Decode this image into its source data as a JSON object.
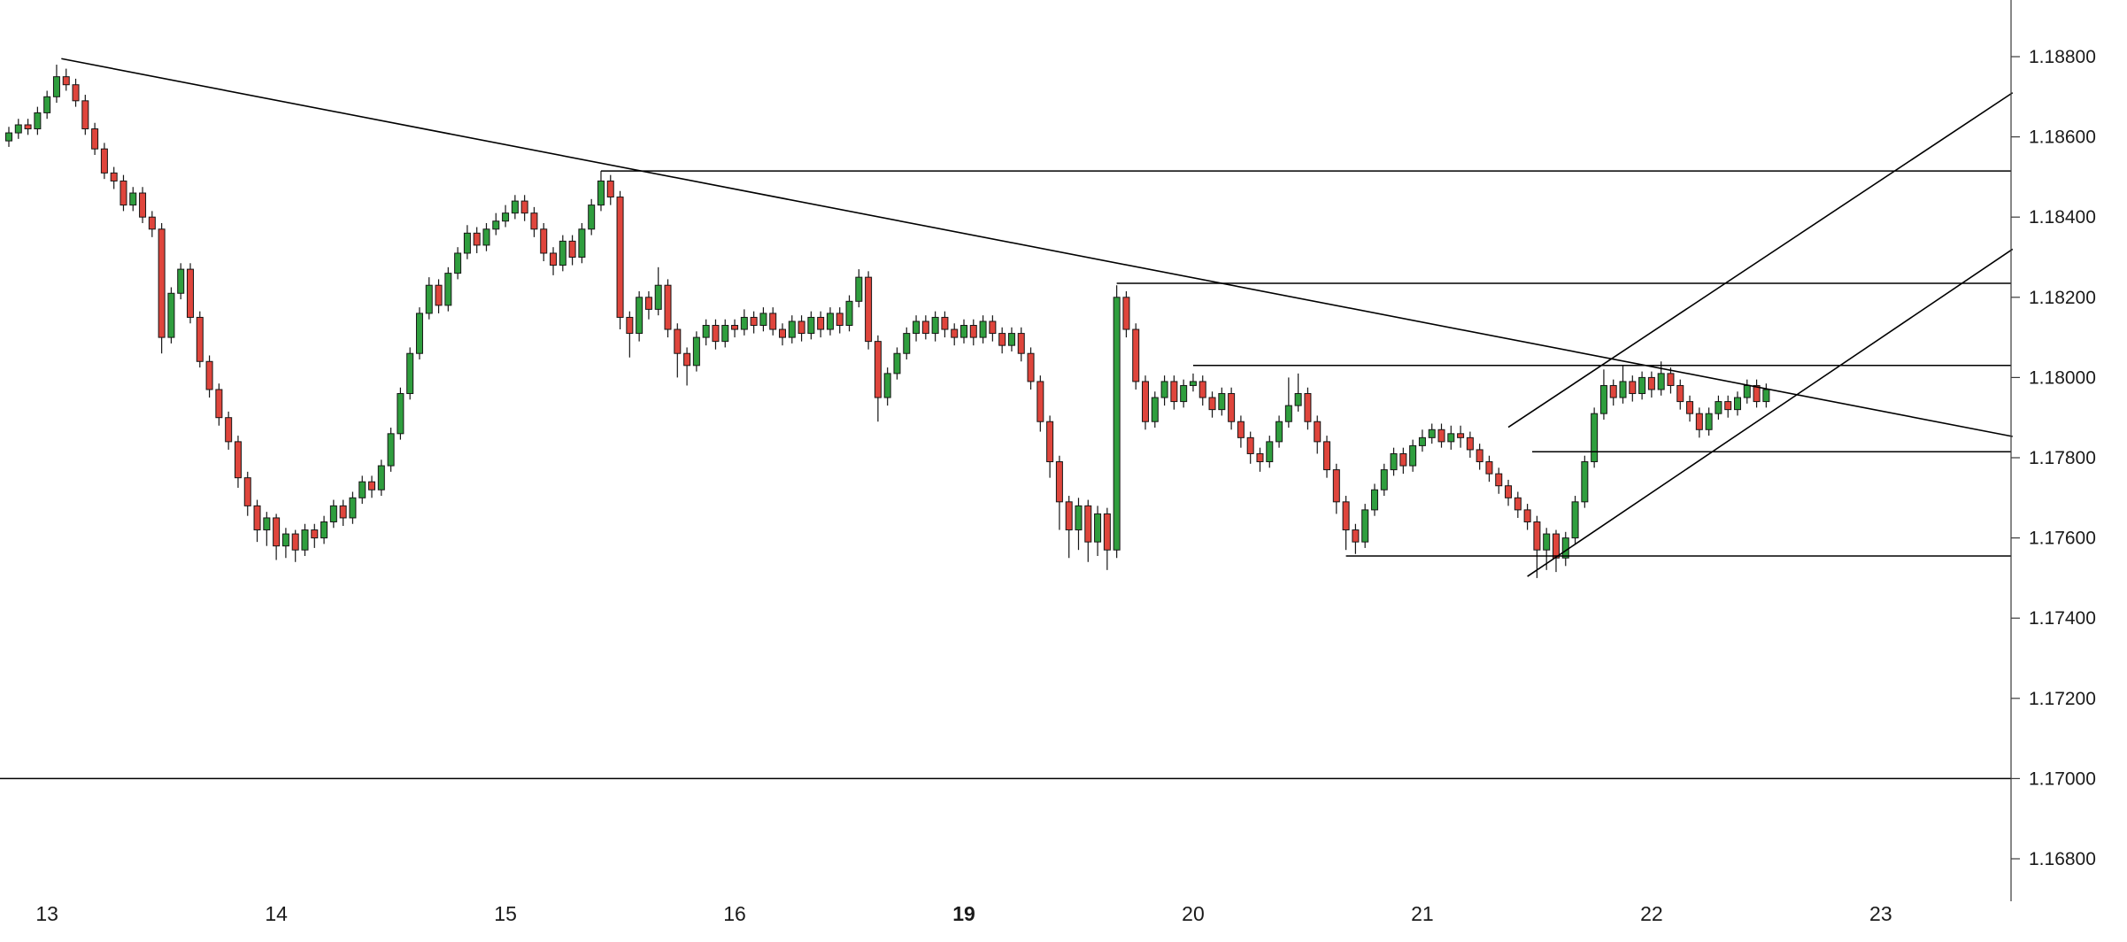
{
  "chart_data": {
    "type": "candlestick",
    "y_axis": {
      "min": 1.168,
      "max": 1.188,
      "step": 0.002,
      "ticks": [
        "1.18800",
        "1.18600",
        "1.18400",
        "1.18200",
        "1.18000",
        "1.17800",
        "1.17600",
        "1.17400",
        "1.17200",
        "1.17000",
        "1.16800"
      ]
    },
    "x_axis": {
      "ticks": [
        {
          "label": "13",
          "candle_index": 4,
          "bold": false
        },
        {
          "label": "14",
          "candle_index": 28,
          "bold": false
        },
        {
          "label": "15",
          "candle_index": 52,
          "bold": false
        },
        {
          "label": "16",
          "candle_index": 76,
          "bold": false
        },
        {
          "label": "19",
          "candle_index": 100,
          "bold": true
        },
        {
          "label": "20",
          "candle_index": 124,
          "bold": false
        },
        {
          "label": "21",
          "candle_index": 148,
          "bold": false
        },
        {
          "label": "22",
          "candle_index": 172,
          "bold": false
        },
        {
          "label": "23",
          "candle_index": 196,
          "bold": false
        }
      ]
    },
    "candles": [
      [
        1.1859,
        1.18625,
        1.18575,
        1.1861
      ],
      [
        1.1861,
        1.18645,
        1.18595,
        1.1863
      ],
      [
        1.1863,
        1.18645,
        1.18605,
        1.1862
      ],
      [
        1.1862,
        1.18675,
        1.18605,
        1.1866
      ],
      [
        1.1866,
        1.18715,
        1.18645,
        1.187
      ],
      [
        1.187,
        1.1878,
        1.18685,
        1.1875
      ],
      [
        1.1875,
        1.1877,
        1.18715,
        1.1873
      ],
      [
        1.1873,
        1.18745,
        1.18675,
        1.1869
      ],
      [
        1.1869,
        1.18705,
        1.18605,
        1.1862
      ],
      [
        1.1862,
        1.18635,
        1.18555,
        1.1857
      ],
      [
        1.1857,
        1.18585,
        1.18495,
        1.1851
      ],
      [
        1.1851,
        1.18525,
        1.1847,
        1.1849
      ],
      [
        1.1849,
        1.18505,
        1.18415,
        1.1843
      ],
      [
        1.1843,
        1.18475,
        1.18415,
        1.1846
      ],
      [
        1.1846,
        1.18475,
        1.18385,
        1.184
      ],
      [
        1.184,
        1.18415,
        1.1835,
        1.1837
      ],
      [
        1.1837,
        1.18385,
        1.1806,
        1.181
      ],
      [
        1.181,
        1.18225,
        1.18085,
        1.1821
      ],
      [
        1.1821,
        1.18285,
        1.18195,
        1.1827
      ],
      [
        1.1827,
        1.18285,
        1.18135,
        1.1815
      ],
      [
        1.1815,
        1.18165,
        1.18025,
        1.1804
      ],
      [
        1.1804,
        1.18055,
        1.1795,
        1.1797
      ],
      [
        1.1797,
        1.17985,
        1.1788,
        1.179
      ],
      [
        1.179,
        1.17915,
        1.1782,
        1.1784
      ],
      [
        1.1784,
        1.17855,
        1.17725,
        1.1775
      ],
      [
        1.1775,
        1.17765,
        1.17655,
        1.1768
      ],
      [
        1.1768,
        1.17695,
        1.1759,
        1.1762
      ],
      [
        1.1762,
        1.17665,
        1.1758,
        1.1765
      ],
      [
        1.1765,
        1.1766,
        1.17545,
        1.1758
      ],
      [
        1.1758,
        1.17625,
        1.1755,
        1.1761
      ],
      [
        1.1761,
        1.1762,
        1.1754,
        1.1757
      ],
      [
        1.1757,
        1.17635,
        1.17555,
        1.1762
      ],
      [
        1.1762,
        1.17635,
        1.17575,
        1.176
      ],
      [
        1.176,
        1.17655,
        1.17585,
        1.1764
      ],
      [
        1.1764,
        1.17695,
        1.17625,
        1.1768
      ],
      [
        1.1768,
        1.17695,
        1.1763,
        1.1765
      ],
      [
        1.1765,
        1.17715,
        1.17635,
        1.177
      ],
      [
        1.177,
        1.17755,
        1.17685,
        1.1774
      ],
      [
        1.1774,
        1.17755,
        1.177,
        1.1772
      ],
      [
        1.1772,
        1.17795,
        1.17705,
        1.1778
      ],
      [
        1.1778,
        1.17875,
        1.17765,
        1.1786
      ],
      [
        1.1786,
        1.17975,
        1.17845,
        1.1796
      ],
      [
        1.1796,
        1.18075,
        1.17945,
        1.1806
      ],
      [
        1.1806,
        1.18175,
        1.18045,
        1.1816
      ],
      [
        1.1816,
        1.1825,
        1.18145,
        1.1823
      ],
      [
        1.1823,
        1.18245,
        1.1816,
        1.1818
      ],
      [
        1.1818,
        1.18275,
        1.18165,
        1.1826
      ],
      [
        1.1826,
        1.18325,
        1.18245,
        1.1831
      ],
      [
        1.1831,
        1.1838,
        1.18295,
        1.1836
      ],
      [
        1.1836,
        1.18375,
        1.1831,
        1.1833
      ],
      [
        1.1833,
        1.18385,
        1.18315,
        1.1837
      ],
      [
        1.1837,
        1.1841,
        1.18355,
        1.1839
      ],
      [
        1.1839,
        1.1843,
        1.18375,
        1.1841
      ],
      [
        1.1841,
        1.18455,
        1.18395,
        1.1844
      ],
      [
        1.1844,
        1.18455,
        1.1839,
        1.1841
      ],
      [
        1.1841,
        1.18425,
        1.1835,
        1.1837
      ],
      [
        1.1837,
        1.18385,
        1.1829,
        1.1831
      ],
      [
        1.1831,
        1.18325,
        1.18255,
        1.1828
      ],
      [
        1.1828,
        1.18355,
        1.18265,
        1.1834
      ],
      [
        1.1834,
        1.18355,
        1.1828,
        1.183
      ],
      [
        1.183,
        1.18385,
        1.18285,
        1.1837
      ],
      [
        1.1837,
        1.18445,
        1.18355,
        1.1843
      ],
      [
        1.1843,
        1.18515,
        1.18415,
        1.1849
      ],
      [
        1.1849,
        1.18505,
        1.1843,
        1.1845
      ],
      [
        1.1845,
        1.18465,
        1.1812,
        1.1815
      ],
      [
        1.1815,
        1.18165,
        1.1805,
        1.1811
      ],
      [
        1.1811,
        1.18215,
        1.1809,
        1.182
      ],
      [
        1.182,
        1.18215,
        1.18145,
        1.1817
      ],
      [
        1.1817,
        1.18275,
        1.18155,
        1.1823
      ],
      [
        1.1823,
        1.18245,
        1.181,
        1.1812
      ],
      [
        1.1812,
        1.18135,
        1.18,
        1.1806
      ],
      [
        1.1806,
        1.18075,
        1.1798,
        1.1803
      ],
      [
        1.1803,
        1.18115,
        1.18015,
        1.181
      ],
      [
        1.181,
        1.18145,
        1.1808,
        1.1813
      ],
      [
        1.1813,
        1.18145,
        1.1807,
        1.1809
      ],
      [
        1.1809,
        1.18145,
        1.18075,
        1.1813
      ],
      [
        1.1813,
        1.18145,
        1.181,
        1.1812
      ],
      [
        1.1812,
        1.1817,
        1.18105,
        1.1815
      ],
      [
        1.1815,
        1.18165,
        1.1811,
        1.1813
      ],
      [
        1.1813,
        1.18175,
        1.18115,
        1.1816
      ],
      [
        1.1816,
        1.18175,
        1.18105,
        1.1812
      ],
      [
        1.1812,
        1.18135,
        1.1808,
        1.181
      ],
      [
        1.181,
        1.18155,
        1.18085,
        1.1814
      ],
      [
        1.1814,
        1.18155,
        1.1809,
        1.1811
      ],
      [
        1.1811,
        1.18165,
        1.18095,
        1.1815
      ],
      [
        1.1815,
        1.18165,
        1.181,
        1.1812
      ],
      [
        1.1812,
        1.18175,
        1.18105,
        1.1816
      ],
      [
        1.1816,
        1.18175,
        1.1811,
        1.1813
      ],
      [
        1.1813,
        1.18205,
        1.18115,
        1.1819
      ],
      [
        1.1819,
        1.1827,
        1.18175,
        1.1825
      ],
      [
        1.1825,
        1.18265,
        1.1807,
        1.1809
      ],
      [
        1.1809,
        1.18105,
        1.1789,
        1.1795
      ],
      [
        1.1795,
        1.18025,
        1.1793,
        1.1801
      ],
      [
        1.1801,
        1.18075,
        1.17995,
        1.1806
      ],
      [
        1.1806,
        1.18125,
        1.18045,
        1.1811
      ],
      [
        1.1811,
        1.18155,
        1.1809,
        1.1814
      ],
      [
        1.1814,
        1.18155,
        1.18095,
        1.1811
      ],
      [
        1.1811,
        1.18165,
        1.1809,
        1.1815
      ],
      [
        1.1815,
        1.18165,
        1.181,
        1.1812
      ],
      [
        1.1812,
        1.18135,
        1.1808,
        1.181
      ],
      [
        1.181,
        1.18145,
        1.18085,
        1.1813
      ],
      [
        1.1813,
        1.18145,
        1.1808,
        1.181
      ],
      [
        1.181,
        1.18155,
        1.18085,
        1.1814
      ],
      [
        1.1814,
        1.18155,
        1.1809,
        1.1811
      ],
      [
        1.1811,
        1.18125,
        1.1806,
        1.1808
      ],
      [
        1.1808,
        1.18125,
        1.18065,
        1.1811
      ],
      [
        1.1811,
        1.18125,
        1.1804,
        1.1806
      ],
      [
        1.1806,
        1.18075,
        1.1797,
        1.1799
      ],
      [
        1.1799,
        1.18005,
        1.17865,
        1.1789
      ],
      [
        1.1789,
        1.17905,
        1.1775,
        1.1779
      ],
      [
        1.1779,
        1.17805,
        1.1762,
        1.1769
      ],
      [
        1.1769,
        1.17705,
        1.1755,
        1.1762
      ],
      [
        1.1762,
        1.177,
        1.1757,
        1.1768
      ],
      [
        1.1768,
        1.17695,
        1.1754,
        1.1759
      ],
      [
        1.1759,
        1.1768,
        1.17555,
        1.1766
      ],
      [
        1.1766,
        1.17675,
        1.1752,
        1.1757
      ],
      [
        1.1757,
        1.1823,
        1.1755,
        1.182
      ],
      [
        1.182,
        1.18215,
        1.181,
        1.1812
      ],
      [
        1.1812,
        1.18135,
        1.1797,
        1.1799
      ],
      [
        1.1799,
        1.18005,
        1.1787,
        1.1789
      ],
      [
        1.1789,
        1.17965,
        1.17875,
        1.1795
      ],
      [
        1.1795,
        1.18005,
        1.1793,
        1.1799
      ],
      [
        1.1799,
        1.18005,
        1.1792,
        1.1794
      ],
      [
        1.1794,
        1.17995,
        1.17925,
        1.1798
      ],
      [
        1.1798,
        1.1801,
        1.17965,
        1.1799
      ],
      [
        1.1799,
        1.18005,
        1.1793,
        1.1795
      ],
      [
        1.1795,
        1.17965,
        1.179,
        1.1792
      ],
      [
        1.1792,
        1.17975,
        1.17905,
        1.1796
      ],
      [
        1.1796,
        1.17975,
        1.1787,
        1.1789
      ],
      [
        1.1789,
        1.17905,
        1.17825,
        1.1785
      ],
      [
        1.1785,
        1.17865,
        1.17785,
        1.1781
      ],
      [
        1.1781,
        1.17825,
        1.17765,
        1.1779
      ],
      [
        1.1779,
        1.17855,
        1.17775,
        1.1784
      ],
      [
        1.1784,
        1.17905,
        1.17825,
        1.1789
      ],
      [
        1.1789,
        1.18,
        1.17875,
        1.1793
      ],
      [
        1.1793,
        1.1801,
        1.17915,
        1.1796
      ],
      [
        1.1796,
        1.17975,
        1.1787,
        1.1789
      ],
      [
        1.1789,
        1.17905,
        1.1781,
        1.1784
      ],
      [
        1.1784,
        1.17855,
        1.1775,
        1.1777
      ],
      [
        1.1777,
        1.17785,
        1.1766,
        1.1769
      ],
      [
        1.1769,
        1.17705,
        1.1757,
        1.1762
      ],
      [
        1.1762,
        1.17635,
        1.1756,
        1.1759
      ],
      [
        1.1759,
        1.17685,
        1.17575,
        1.1767
      ],
      [
        1.1767,
        1.17735,
        1.17655,
        1.1772
      ],
      [
        1.1772,
        1.17785,
        1.17705,
        1.1777
      ],
      [
        1.1777,
        1.17825,
        1.17755,
        1.1781
      ],
      [
        1.1781,
        1.17825,
        1.1776,
        1.1778
      ],
      [
        1.1778,
        1.17845,
        1.17765,
        1.1783
      ],
      [
        1.1783,
        1.1787,
        1.17815,
        1.1785
      ],
      [
        1.1785,
        1.17885,
        1.17835,
        1.1787
      ],
      [
        1.1787,
        1.17885,
        1.17825,
        1.1784
      ],
      [
        1.1784,
        1.1788,
        1.1782,
        1.1786
      ],
      [
        1.1786,
        1.1788,
        1.17825,
        1.1785
      ],
      [
        1.1785,
        1.17865,
        1.178,
        1.1782
      ],
      [
        1.1782,
        1.17835,
        1.1777,
        1.1779
      ],
      [
        1.1779,
        1.17805,
        1.1774,
        1.1776
      ],
      [
        1.1776,
        1.17775,
        1.1771,
        1.1773
      ],
      [
        1.1773,
        1.17745,
        1.1768,
        1.177
      ],
      [
        1.177,
        1.17715,
        1.1765,
        1.1767
      ],
      [
        1.1767,
        1.17685,
        1.1762,
        1.1764
      ],
      [
        1.1764,
        1.17655,
        1.175,
        1.1757
      ],
      [
        1.1757,
        1.17625,
        1.1752,
        1.1761
      ],
      [
        1.1761,
        1.1762,
        1.17515,
        1.1755
      ],
      [
        1.1755,
        1.17615,
        1.1753,
        1.176
      ],
      [
        1.176,
        1.17705,
        1.17585,
        1.1769
      ],
      [
        1.1769,
        1.17805,
        1.17675,
        1.1779
      ],
      [
        1.1779,
        1.17925,
        1.17775,
        1.1791
      ],
      [
        1.1791,
        1.1802,
        1.17895,
        1.1798
      ],
      [
        1.1798,
        1.17995,
        1.1793,
        1.1795
      ],
      [
        1.1795,
        1.1803,
        1.17935,
        1.1799
      ],
      [
        1.1799,
        1.18005,
        1.1794,
        1.1796
      ],
      [
        1.1796,
        1.18015,
        1.17945,
        1.18
      ],
      [
        1.18,
        1.18015,
        1.1795,
        1.1797
      ],
      [
        1.1797,
        1.1804,
        1.17955,
        1.1801
      ],
      [
        1.1801,
        1.18025,
        1.1796,
        1.1798
      ],
      [
        1.1798,
        1.17995,
        1.1792,
        1.1794
      ],
      [
        1.1794,
        1.17955,
        1.1789,
        1.1791
      ],
      [
        1.1791,
        1.17925,
        1.1785,
        1.1787
      ],
      [
        1.1787,
        1.17925,
        1.17855,
        1.1791
      ],
      [
        1.1791,
        1.17955,
        1.17895,
        1.1794
      ],
      [
        1.1794,
        1.17955,
        1.179,
        1.1792
      ],
      [
        1.1792,
        1.17965,
        1.17905,
        1.1795
      ],
      [
        1.1795,
        1.17995,
        1.17935,
        1.1798
      ],
      [
        1.1798,
        1.17995,
        1.17925,
        1.1794
      ],
      [
        1.1794,
        1.17985,
        1.17925,
        1.1797
      ]
    ],
    "trendlines": [
      {
        "name": "descending-resistance-trendline",
        "i1": 5.5,
        "p1": 1.18795,
        "i2": 209.8,
        "p2": 1.17853
      },
      {
        "name": "ascending-trendline-steep",
        "i1": 157,
        "p1": 1.17876,
        "i2": 209.8,
        "p2": 1.1871
      },
      {
        "name": "ascending-trendline-lower",
        "i1": 159,
        "p1": 1.17504,
        "i2": 209.8,
        "p2": 1.1832
      }
    ],
    "hlines": [
      {
        "name": "resistance-1.18515",
        "price": 1.18515,
        "from_candle": 62
      },
      {
        "name": "resistance-1.18235",
        "price": 1.18235,
        "from_candle": 116
      },
      {
        "name": "resistance-1.18030",
        "price": 1.1803,
        "from_candle": 124
      },
      {
        "name": "level-1.17815",
        "price": 1.17815,
        "from_candle": 159.5
      },
      {
        "name": "support-1.17555",
        "price": 1.17555,
        "from_candle": 140
      },
      {
        "name": "support-1.17000",
        "price": 1.17,
        "from_candle": 0
      }
    ],
    "colors": {
      "bull": "#2f9e3e",
      "bear": "#df453c",
      "wick": "#161616",
      "candle_border": "#161616",
      "line": "#000000",
      "axis": "#3a3a3a",
      "text": "#1b1b1b",
      "background": "#ffffff"
    }
  }
}
